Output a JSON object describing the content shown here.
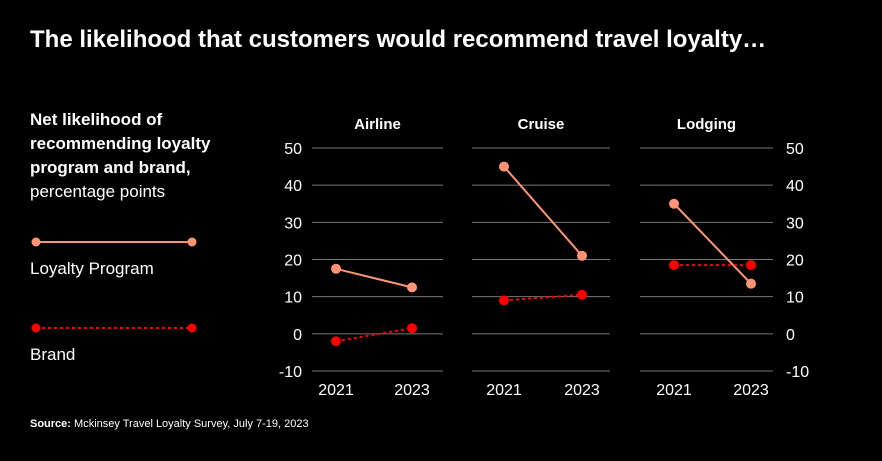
{
  "title": "The likelihood that customers would recommend travel loyalty…",
  "subtitle_bold": "Net likelihood of recommending loyalty program and brand,",
  "subtitle_normal": "percentage points",
  "source_label": "Source:",
  "source_text": "Mckinsey Travel Loyalty Survey, July 7-19, 2023",
  "colors": {
    "background": "#000000",
    "loyalty": "#ff9474",
    "brand": "#ff0000",
    "grid": "#777777",
    "text": "#ffffff"
  },
  "chart_data": {
    "type": "line",
    "ylim": [
      -10,
      50
    ],
    "yticks": [
      "50",
      "40",
      "30",
      "20",
      "10",
      "0",
      "-10"
    ],
    "ytick_values": [
      50,
      40,
      30,
      20,
      10,
      0,
      -10
    ],
    "categories": [
      "2021",
      "2023"
    ],
    "legend": [
      {
        "name": "Loyalty Program",
        "style": "solid"
      },
      {
        "name": "Brand",
        "style": "dotted"
      }
    ],
    "panels": [
      {
        "title": "Airline",
        "series": [
          {
            "name": "Loyalty Program",
            "values": [
              17.5,
              12.5
            ]
          },
          {
            "name": "Brand",
            "values": [
              -2,
              1.5
            ]
          }
        ]
      },
      {
        "title": "Cruise",
        "series": [
          {
            "name": "Loyalty Program",
            "values": [
              45,
              21
            ]
          },
          {
            "name": "Brand",
            "values": [
              9,
              10.5
            ]
          }
        ]
      },
      {
        "title": "Lodging",
        "series": [
          {
            "name": "Loyalty Program",
            "values": [
              35,
              13.5
            ]
          },
          {
            "name": "Brand",
            "values": [
              18.5,
              18.5
            ]
          }
        ]
      }
    ]
  }
}
